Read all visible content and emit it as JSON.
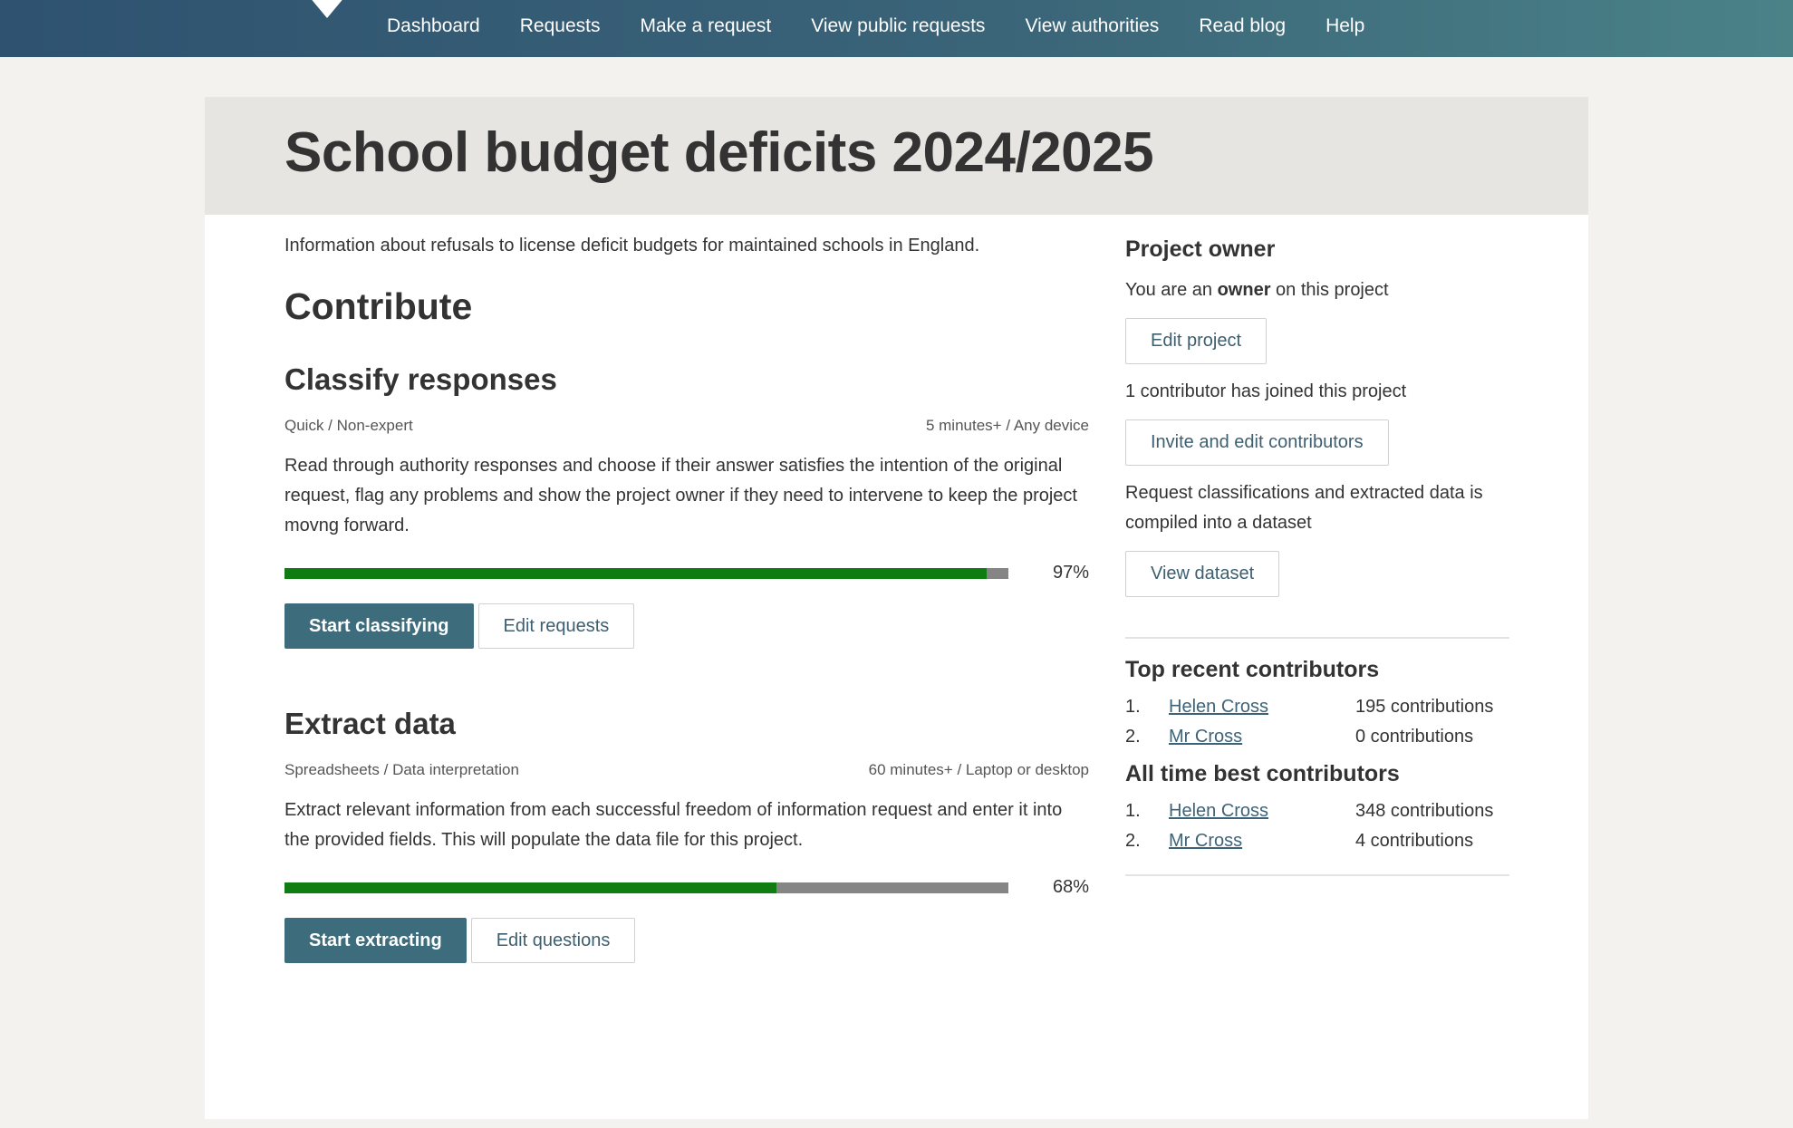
{
  "nav": {
    "items": [
      {
        "label": "Dashboard"
      },
      {
        "label": "Requests"
      },
      {
        "label": "Make a request"
      },
      {
        "label": "View public requests"
      },
      {
        "label": "View authorities"
      },
      {
        "label": "Read blog"
      },
      {
        "label": "Help"
      }
    ]
  },
  "header": {
    "title": "School budget deficits 2024/2025"
  },
  "main": {
    "intro": "Information about refusals to license deficit budgets for maintained schools in England.",
    "contribute_heading": "Contribute",
    "tasks": [
      {
        "title": "Classify responses",
        "meta_left": "Quick / Non-expert",
        "meta_right": "5 minutes+ / Any device",
        "description": "Read through authority responses and choose if their answer satisfies the intention of the original request, flag any problems and show the project owner if they need to intervene to keep the project movng forward.",
        "progress": 97,
        "progress_label": "97%",
        "primary_label": "Start classifying",
        "secondary_label": "Edit requests"
      },
      {
        "title": "Extract data",
        "meta_left": "Spreadsheets / Data interpretation",
        "meta_right": "60 minutes+ / Laptop or desktop",
        "description": "Extract relevant information from each successful freedom of information request and enter it into the provided fields. This will populate the data file for this project.",
        "progress": 68,
        "progress_label": "68%",
        "primary_label": "Start extracting",
        "secondary_label": "Edit questions"
      }
    ]
  },
  "sidebar": {
    "owner_heading": "Project owner",
    "owner_text_prefix": "You are an",
    "owner_text_bold": "owner",
    "owner_text_suffix": "on this project",
    "edit_project_label": "Edit project",
    "contributors_text": "1 contributor has joined this project",
    "invite_label": "Invite and edit contributors",
    "dataset_text": "Request classifications and extracted data is compiled into a dataset",
    "view_dataset_label": "View dataset",
    "recent_heading": "Top recent contributors",
    "recent": [
      {
        "num": "1.",
        "name": "Helen Cross",
        "count": "195 contributions"
      },
      {
        "num": "2.",
        "name": "Mr Cross",
        "count": "0 contributions"
      }
    ],
    "alltime_heading": "All time best contributors",
    "alltime": [
      {
        "num": "1.",
        "name": "Helen Cross",
        "count": "348 contributions"
      },
      {
        "num": "2.",
        "name": "Mr Cross",
        "count": "4 contributions"
      }
    ]
  },
  "colors": {
    "nav_gradient_start": "#2e5270",
    "nav_gradient_end": "#4a8288",
    "progress_fill": "#0f7d12",
    "progress_track": "#858585",
    "primary_button": "#3d6d7c"
  }
}
